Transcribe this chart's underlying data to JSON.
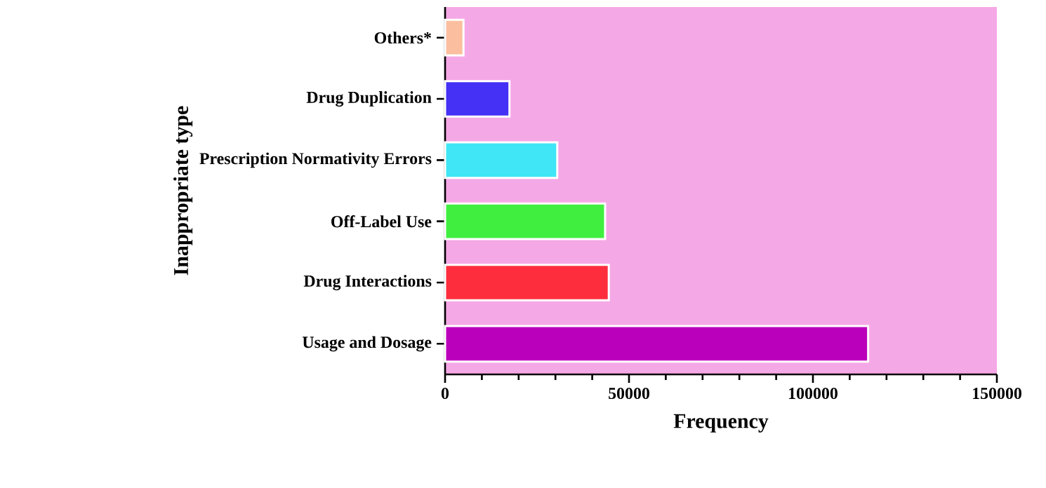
{
  "chart_data": {
    "type": "bar",
    "orientation": "horizontal",
    "xlabel": "Frequency",
    "ylabel": "Inappropriate type",
    "categories": [
      "Others*",
      "Drug Duplication",
      "Prescription Normativity Errors",
      "Off-Label Use",
      "Drug Interactions",
      "Usage and Dosage"
    ],
    "values": [
      5000,
      17500,
      30500,
      43500,
      44500,
      115000
    ],
    "colors": [
      "#fbbf9f",
      "#4530f5",
      "#40e6f5",
      "#40ee40",
      "#fd2d3d",
      "#bb00bb"
    ],
    "xlim": [
      0,
      150000
    ],
    "xticks": [
      0,
      50000,
      100000,
      150000
    ]
  }
}
